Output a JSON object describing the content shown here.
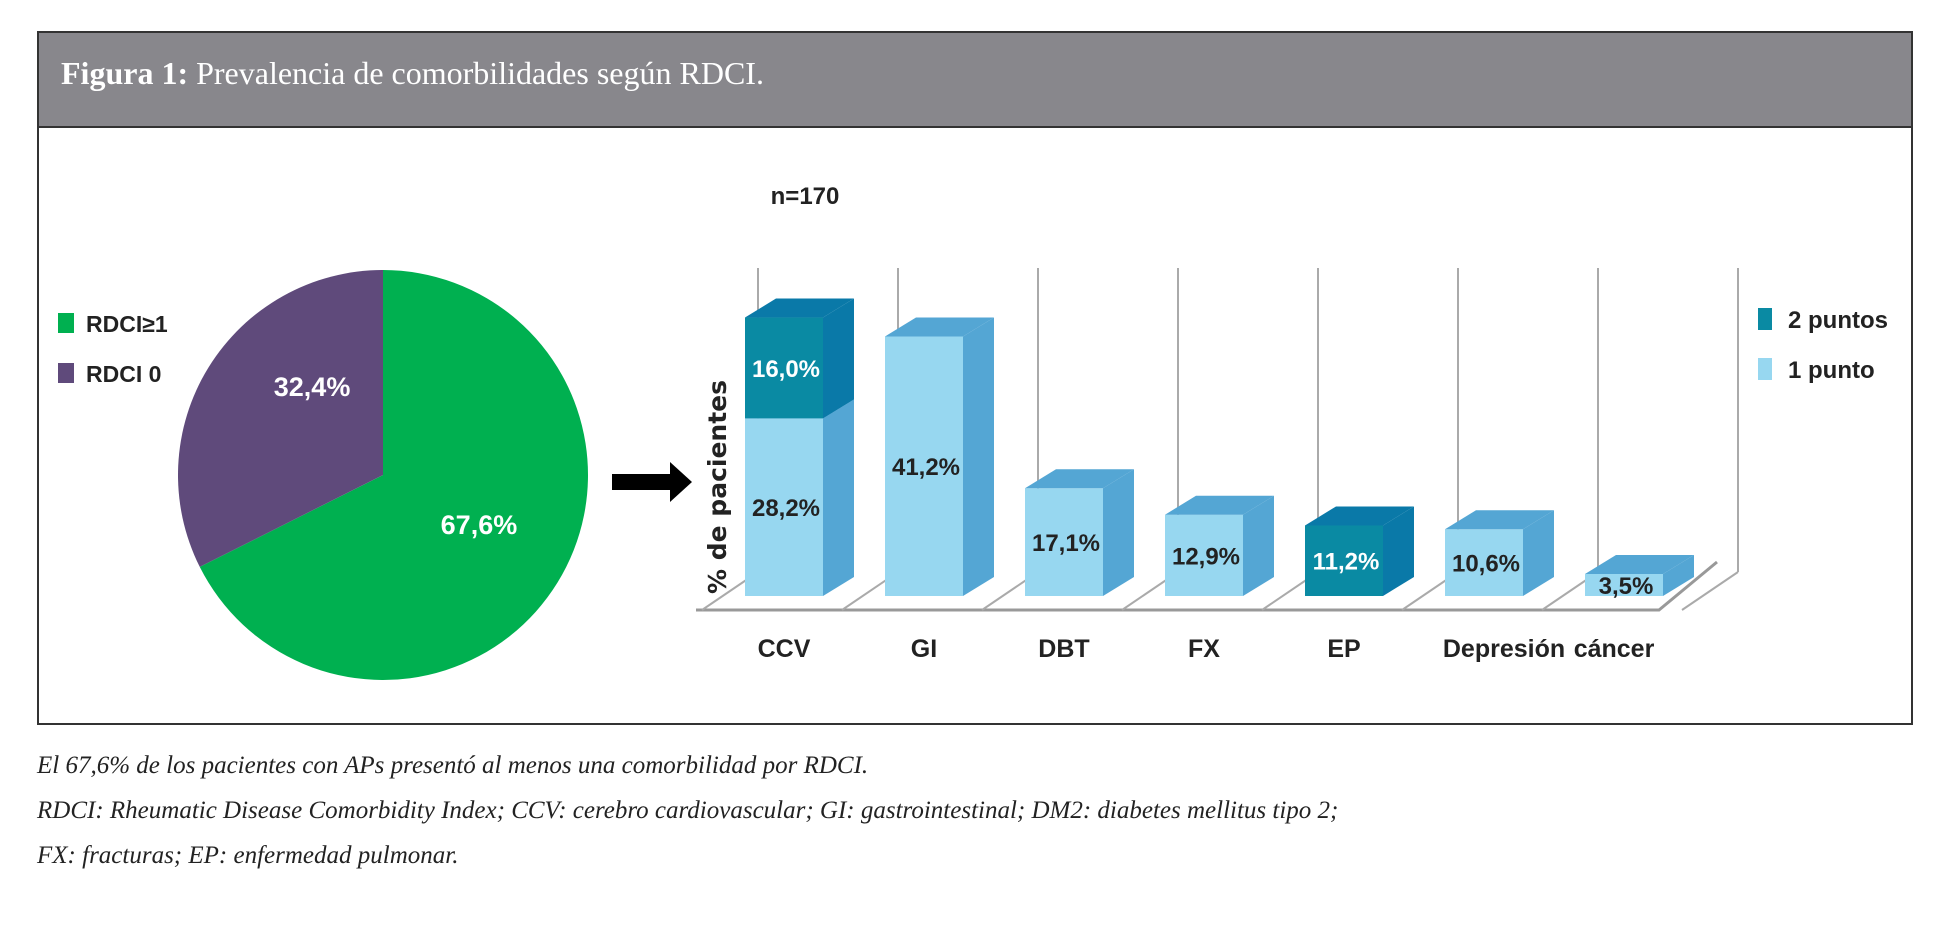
{
  "figure": {
    "title_prefix": "Figura 1:",
    "title": " Prevalencia de comorbilidades según RDCI."
  },
  "chart_data": [
    {
      "type": "pie",
      "legend": [
        "RDCI≥1",
        "RDCI 0"
      ],
      "legend_position": "left",
      "slices": [
        {
          "name": "RDCI≥1",
          "value": 67.6,
          "label": "67,6%",
          "color": "#00b050"
        },
        {
          "name": "RDCI 0",
          "value": 32.4,
          "label": "32,4%",
          "color": "#5f4a7b"
        }
      ]
    },
    {
      "type": "bar",
      "stacked": true,
      "style": "3d",
      "annotation": "n=170",
      "ylabel": "% de pacientes",
      "xlabel": "",
      "legend_position": "right",
      "grid": true,
      "categories": [
        "CCV",
        "GI",
        "DBT",
        "FX",
        "EP",
        "Depresión",
        "cáncer"
      ],
      "series": [
        {
          "name": "1 punto",
          "color": "#97d7f0",
          "values": [
            28.2,
            41.2,
            17.1,
            12.9,
            0,
            10.6,
            3.5
          ],
          "labels": [
            "28,2%",
            "41,2%",
            "17,1%",
            "12,9%",
            "",
            "10,6%",
            "3,5%"
          ]
        },
        {
          "name": "2 puntos",
          "color": "#0a8aa3",
          "values": [
            16.0,
            0,
            0,
            0,
            11.2,
            0,
            0
          ],
          "labels": [
            "16,0%",
            "",
            "",
            "",
            "11,2%",
            "",
            ""
          ]
        }
      ]
    }
  ],
  "captions": [
    "El 67,6% de los pacientes con APs presentó al menos una comorbilidad por RDCI.",
    "RDCI: Rheumatic Disease Comorbidity Index; CCV: cerebro cardiovascular; GI: gastrointestinal; DM2: diabetes mellitus tipo 2;",
    "FX: fracturas; EP: enfermedad pulmonar."
  ]
}
